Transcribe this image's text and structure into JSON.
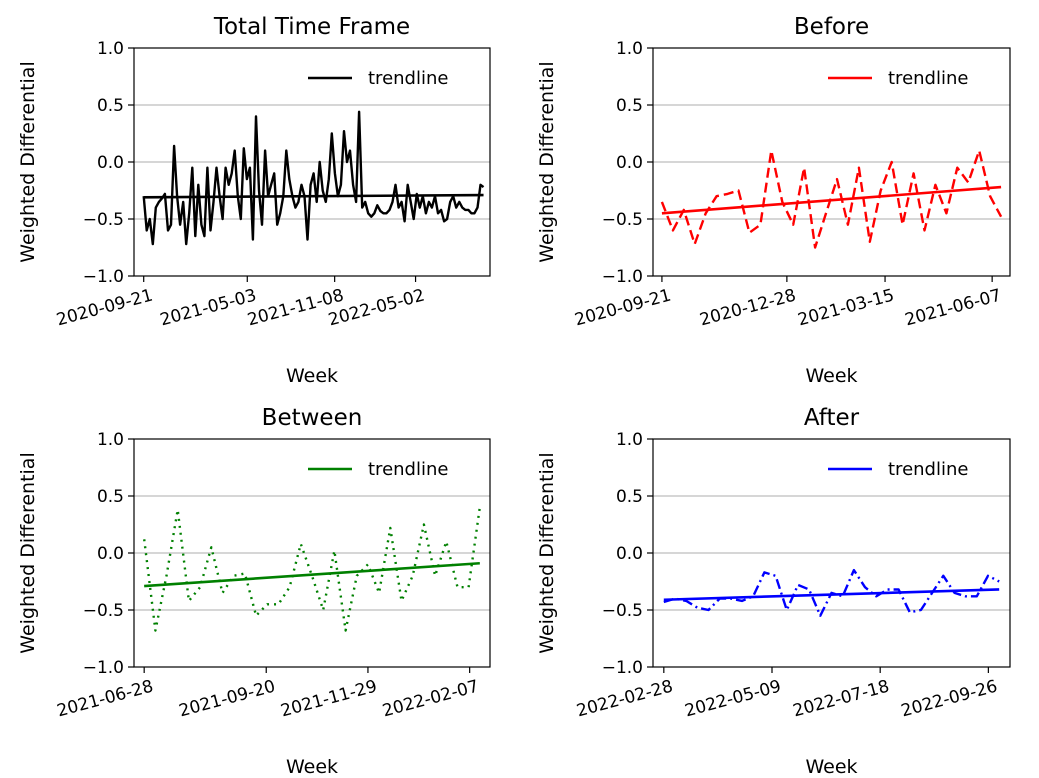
{
  "chart_data": [
    {
      "type": "line",
      "title": "Total Time Frame",
      "xlabel": "Week",
      "ylabel": "Weighted Differential",
      "ylim": [
        -1.0,
        1.0
      ],
      "yticks": [
        -1.0,
        -0.5,
        0.0,
        0.5,
        1.0
      ],
      "yticklabels": [
        "−1.0",
        "−0.5",
        "0.0",
        "0.5",
        "1.0"
      ],
      "xlim": [
        "2020-08-31",
        "2022-10-10"
      ],
      "xticks": [
        "2020-09-21",
        "2021-05-03",
        "2021-11-08",
        "2022-05-02"
      ],
      "grid": "y",
      "legend": {
        "position": "top-right",
        "entries": [
          "trendline"
        ]
      },
      "series": [
        {
          "name": "",
          "color": "#000000",
          "style": "solid",
          "x_start": "2020-09-21",
          "x_end": "2022-09-26",
          "values": [
            -0.3,
            -0.6,
            -0.5,
            -0.72,
            -0.4,
            -0.35,
            -0.32,
            -0.28,
            -0.6,
            -0.55,
            0.14,
            -0.3,
            -0.55,
            -0.35,
            -0.72,
            -0.45,
            -0.05,
            -0.65,
            -0.2,
            -0.55,
            -0.65,
            -0.05,
            -0.6,
            -0.35,
            -0.05,
            -0.3,
            -0.5,
            -0.05,
            -0.2,
            -0.1,
            0.1,
            -0.3,
            -0.5,
            0.12,
            -0.15,
            -0.05,
            -0.68,
            0.4,
            -0.25,
            -0.55,
            0.1,
            -0.3,
            -0.2,
            -0.1,
            -0.55,
            -0.45,
            -0.3,
            0.1,
            -0.15,
            -0.3,
            -0.4,
            -0.35,
            -0.2,
            -0.3,
            -0.68,
            -0.2,
            -0.1,
            -0.35,
            0.0,
            -0.25,
            -0.35,
            -0.15,
            0.25,
            -0.1,
            -0.3,
            -0.2,
            0.27,
            0.0,
            0.1,
            -0.2,
            -0.35,
            0.44,
            -0.4,
            -0.35,
            -0.45,
            -0.48,
            -0.45,
            -0.38,
            -0.43,
            -0.45,
            -0.45,
            -0.42,
            -0.35,
            -0.2,
            -0.4,
            -0.35,
            -0.52,
            -0.2,
            -0.35,
            -0.5,
            -0.28,
            -0.4,
            -0.3,
            -0.45,
            -0.35,
            -0.4,
            -0.3,
            -0.45,
            -0.42,
            -0.52,
            -0.5,
            -0.35,
            -0.3,
            -0.4,
            -0.35,
            -0.4,
            -0.42,
            -0.42,
            -0.45,
            -0.45,
            -0.4,
            -0.2,
            -0.22
          ]
        }
      ],
      "trendline": {
        "color": "#000000",
        "start": -0.31,
        "end": -0.29
      }
    },
    {
      "type": "line",
      "title": "Before",
      "xlabel": "Week",
      "ylabel": "Weighted Differential",
      "ylim": [
        -1.0,
        1.0
      ],
      "yticks": [
        -1.0,
        -0.5,
        0.0,
        0.5,
        1.0
      ],
      "yticklabels": [
        "−1.0",
        "−0.5",
        "0.0",
        "0.5",
        "1.0"
      ],
      "xlim": [
        "2020-09-14",
        "2021-06-21"
      ],
      "xticks": [
        "2020-09-21",
        "2020-12-28",
        "2021-03-15",
        "2021-06-07"
      ],
      "grid": "y",
      "legend": {
        "position": "top-right",
        "entries": [
          "trendline"
        ]
      },
      "series": [
        {
          "name": "",
          "color": "#ff0000",
          "style": "dashed",
          "x_start": "2020-09-21",
          "x_end": "2021-06-14",
          "values": [
            -0.35,
            -0.6,
            -0.42,
            -0.72,
            -0.45,
            -0.3,
            -0.28,
            -0.25,
            -0.62,
            -0.55,
            0.1,
            -0.35,
            -0.55,
            -0.05,
            -0.75,
            -0.45,
            -0.15,
            -0.55,
            -0.05,
            -0.7,
            -0.25,
            0.0,
            -0.55,
            -0.1,
            -0.6,
            -0.2,
            -0.45,
            -0.05,
            -0.18,
            0.1,
            -0.3,
            -0.48
          ]
        }
      ],
      "trendline": {
        "color": "#ff0000",
        "start": -0.45,
        "end": -0.22
      }
    },
    {
      "type": "line",
      "title": "Between",
      "xlabel": "Week",
      "ylabel": "Weighted Differential",
      "ylim": [
        -1.0,
        1.0
      ],
      "yticks": [
        -1.0,
        -0.5,
        0.0,
        0.5,
        1.0
      ],
      "yticklabels": [
        "−1.0",
        "−0.5",
        "0.0",
        "0.5",
        "1.0"
      ],
      "xlim": [
        "2021-06-21",
        "2022-02-21"
      ],
      "xticks": [
        "2021-06-28",
        "2021-09-20",
        "2021-11-29",
        "2022-02-07"
      ],
      "grid": "y",
      "legend": {
        "position": "top-right",
        "entries": [
          "trendline"
        ]
      },
      "series": [
        {
          "name": "",
          "color": "#008000",
          "style": "dotted",
          "x_start": "2021-06-28",
          "x_end": "2022-02-14",
          "values": [
            0.12,
            -0.68,
            -0.2,
            0.38,
            -0.42,
            -0.3,
            0.05,
            -0.35,
            -0.2,
            -0.18,
            -0.55,
            -0.45,
            -0.45,
            -0.3,
            0.08,
            -0.2,
            -0.5,
            0.02,
            -0.68,
            -0.2,
            -0.1,
            -0.35,
            0.22,
            -0.42,
            -0.2,
            0.25,
            -0.2,
            0.1,
            -0.3,
            -0.3,
            0.4
          ]
        }
      ],
      "trendline": {
        "color": "#008000",
        "start": -0.29,
        "end": -0.09
      }
    },
    {
      "type": "line",
      "title": "After",
      "xlabel": "Week",
      "ylabel": "Weighted Differential",
      "ylim": [
        -1.0,
        1.0
      ],
      "yticks": [
        -1.0,
        -0.5,
        0.0,
        0.5,
        1.0
      ],
      "yticklabels": [
        "−1.0",
        "−0.5",
        "0.0",
        "0.5",
        "1.0"
      ],
      "xlim": [
        "2022-02-21",
        "2022-10-10"
      ],
      "xticks": [
        "2022-02-28",
        "2022-05-09",
        "2022-07-18",
        "2022-09-26"
      ],
      "grid": "y",
      "legend": {
        "position": "top-right",
        "entries": [
          "trendline"
        ]
      },
      "series": [
        {
          "name": "",
          "color": "#0000ff",
          "style": "dashdot",
          "x_start": "2022-02-28",
          "x_end": "2022-10-03",
          "values": [
            -0.43,
            -0.4,
            -0.42,
            -0.48,
            -0.5,
            -0.4,
            -0.4,
            -0.42,
            -0.38,
            -0.17,
            -0.2,
            -0.5,
            -0.28,
            -0.32,
            -0.55,
            -0.35,
            -0.38,
            -0.15,
            -0.3,
            -0.38,
            -0.32,
            -0.32,
            -0.52,
            -0.5,
            -0.35,
            -0.2,
            -0.35,
            -0.38,
            -0.38,
            -0.2,
            -0.25
          ]
        }
      ],
      "trendline": {
        "color": "#0000ff",
        "start": -0.41,
        "end": -0.32
      }
    }
  ]
}
